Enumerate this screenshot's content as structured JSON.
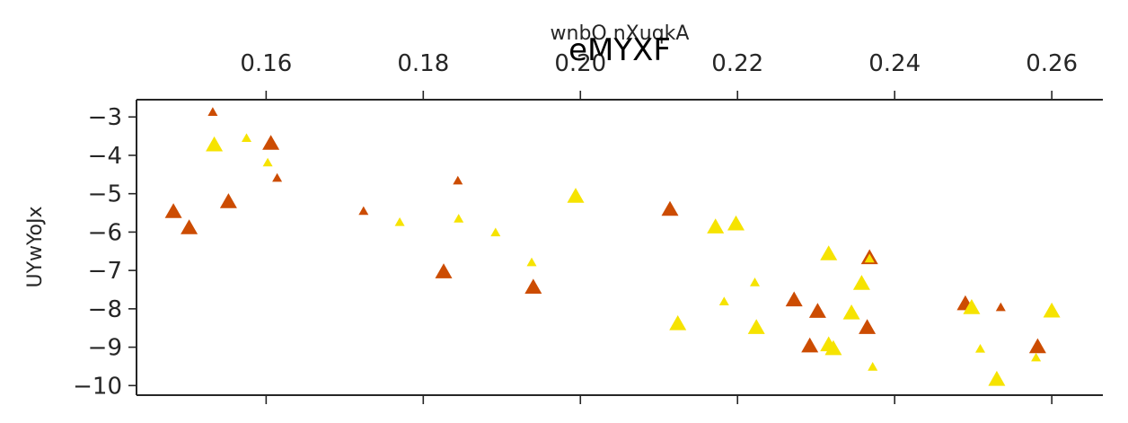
{
  "chart_data": {
    "type": "scatter",
    "title": "eMYXF",
    "xlabel": "wnbO  nXuqkA",
    "ylabel": "UYwYoJx",
    "xlim": [
      0.1435,
      0.2665
    ],
    "ylim": [
      -10.25,
      -2.55
    ],
    "xticks": [
      0.16,
      0.18,
      0.2,
      0.22,
      0.24,
      0.26
    ],
    "xtick_labels": [
      "0.16",
      "0.18",
      "0.20",
      "0.22",
      "0.24",
      "0.26"
    ],
    "yticks": [
      -3,
      -4,
      -5,
      -6,
      -7,
      -8,
      -9,
      -10
    ],
    "ytick_labels": [
      "−3",
      "−4",
      "−5",
      "−6",
      "−7",
      "−8",
      "−9",
      "−10"
    ],
    "x_axis_position": "top",
    "grid": false,
    "marker": "triangle",
    "colors": {
      "orange": "#cc4c02",
      "yellow": "#f6e300"
    },
    "points": [
      {
        "x": 0.1532,
        "y": -2.88,
        "color": "orange",
        "size": "small"
      },
      {
        "x": 0.1482,
        "y": -5.48,
        "color": "orange",
        "size": "large"
      },
      {
        "x": 0.1502,
        "y": -5.9,
        "color": "orange",
        "size": "large"
      },
      {
        "x": 0.1552,
        "y": -5.22,
        "color": "orange",
        "size": "large"
      },
      {
        "x": 0.1606,
        "y": -3.7,
        "color": "orange",
        "size": "large"
      },
      {
        "x": 0.1614,
        "y": -4.6,
        "color": "orange",
        "size": "small"
      },
      {
        "x": 0.1724,
        "y": -5.46,
        "color": "orange",
        "size": "small"
      },
      {
        "x": 0.1844,
        "y": -4.67,
        "color": "orange",
        "size": "small"
      },
      {
        "x": 0.1826,
        "y": -7.05,
        "color": "orange",
        "size": "large"
      },
      {
        "x": 0.194,
        "y": -7.45,
        "color": "orange",
        "size": "large"
      },
      {
        "x": 0.2114,
        "y": -5.42,
        "color": "orange",
        "size": "large"
      },
      {
        "x": 0.2368,
        "y": -6.68,
        "color": "orange",
        "size": "large"
      },
      {
        "x": 0.2272,
        "y": -7.78,
        "color": "orange",
        "size": "large"
      },
      {
        "x": 0.2302,
        "y": -8.08,
        "color": "orange",
        "size": "large"
      },
      {
        "x": 0.2292,
        "y": -8.98,
        "color": "orange",
        "size": "large"
      },
      {
        "x": 0.2365,
        "y": -8.5,
        "color": "orange",
        "size": "large"
      },
      {
        "x": 0.249,
        "y": -7.88,
        "color": "orange",
        "size": "large"
      },
      {
        "x": 0.2535,
        "y": -7.97,
        "color": "orange",
        "size": "small"
      },
      {
        "x": 0.2582,
        "y": -9.0,
        "color": "orange",
        "size": "large"
      },
      {
        "x": 0.1534,
        "y": -3.74,
        "color": "yellow",
        "size": "large"
      },
      {
        "x": 0.1575,
        "y": -3.56,
        "color": "yellow",
        "size": "small"
      },
      {
        "x": 0.1602,
        "y": -4.2,
        "color": "yellow",
        "size": "small"
      },
      {
        "x": 0.177,
        "y": -5.75,
        "color": "yellow",
        "size": "small"
      },
      {
        "x": 0.1845,
        "y": -5.66,
        "color": "yellow",
        "size": "small"
      },
      {
        "x": 0.1892,
        "y": -6.02,
        "color": "yellow",
        "size": "small"
      },
      {
        "x": 0.1938,
        "y": -6.8,
        "color": "yellow",
        "size": "small"
      },
      {
        "x": 0.1994,
        "y": -5.08,
        "color": "yellow",
        "size": "large"
      },
      {
        "x": 0.2124,
        "y": -8.4,
        "color": "yellow",
        "size": "large"
      },
      {
        "x": 0.2172,
        "y": -5.88,
        "color": "yellow",
        "size": "large"
      },
      {
        "x": 0.2198,
        "y": -5.8,
        "color": "yellow",
        "size": "large"
      },
      {
        "x": 0.2183,
        "y": -7.82,
        "color": "yellow",
        "size": "small"
      },
      {
        "x": 0.2222,
        "y": -7.32,
        "color": "yellow",
        "size": "small"
      },
      {
        "x": 0.2224,
        "y": -8.5,
        "color": "yellow",
        "size": "large"
      },
      {
        "x": 0.2316,
        "y": -6.58,
        "color": "yellow",
        "size": "large"
      },
      {
        "x": 0.2316,
        "y": -8.95,
        "color": "yellow",
        "size": "large"
      },
      {
        "x": 0.2322,
        "y": -9.05,
        "color": "yellow",
        "size": "large"
      },
      {
        "x": 0.2345,
        "y": -8.12,
        "color": "yellow",
        "size": "large"
      },
      {
        "x": 0.2358,
        "y": -7.35,
        "color": "yellow",
        "size": "large"
      },
      {
        "x": 0.2368,
        "y": -6.7,
        "color": "yellow",
        "size": "small"
      },
      {
        "x": 0.2372,
        "y": -9.52,
        "color": "yellow",
        "size": "small"
      },
      {
        "x": 0.2498,
        "y": -7.98,
        "color": "yellow",
        "size": "large"
      },
      {
        "x": 0.2509,
        "y": -9.05,
        "color": "yellow",
        "size": "small"
      },
      {
        "x": 0.253,
        "y": -9.85,
        "color": "yellow",
        "size": "large"
      },
      {
        "x": 0.258,
        "y": -9.28,
        "color": "yellow",
        "size": "small"
      },
      {
        "x": 0.26,
        "y": -8.07,
        "color": "yellow",
        "size": "large"
      }
    ]
  }
}
